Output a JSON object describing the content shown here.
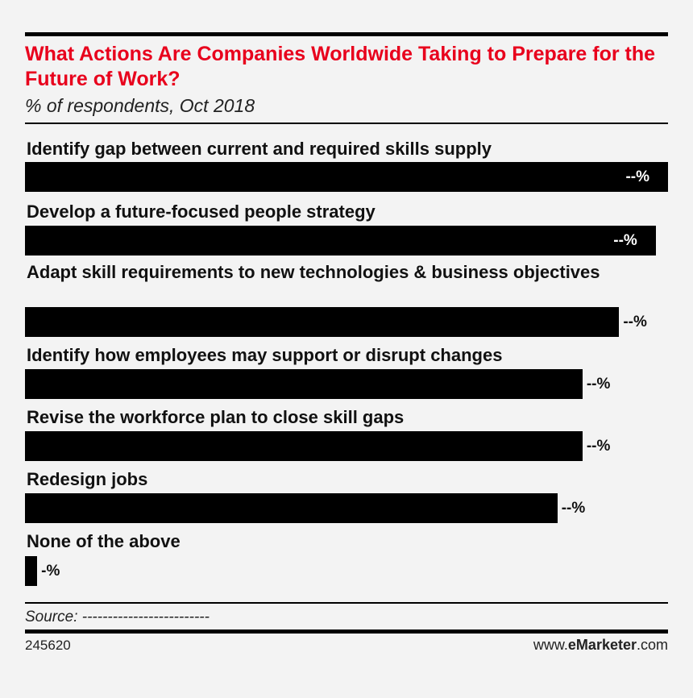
{
  "chart_data": {
    "type": "bar",
    "orientation": "horizontal",
    "title": "What Actions Are Companies Worldwide Taking to Prepare for the Future of Work?",
    "subtitle": "% of respondents, Oct 2018",
    "categories": [
      "Identify gap between current and required skills supply",
      "Develop a future-focused people strategy",
      "Adapt skill requirements to new technologies & business objectives",
      "Identify how employees may support or disrupt changes",
      "Revise the workforce plan to close skill gaps",
      "Redesign jobs",
      "None of the above"
    ],
    "values": [
      100,
      98.1,
      92.4,
      86.7,
      86.7,
      82.8,
      1.9
    ],
    "value_labels": [
      "--%",
      "--%",
      "--%",
      "--%",
      "--%",
      "--%",
      "-%"
    ],
    "value_label_inside": [
      true,
      true,
      false,
      false,
      false,
      false,
      false
    ],
    "xlim": [
      0,
      100
    ],
    "grid": false,
    "legend": "none",
    "bar_color": "#000000",
    "title_color": "#e8001c"
  },
  "footer": {
    "source": "Source: -------------------------",
    "chart_id": "245620",
    "brand_prefix": "www.",
    "brand_bold": "eMarketer",
    "brand_suffix": ".com"
  }
}
